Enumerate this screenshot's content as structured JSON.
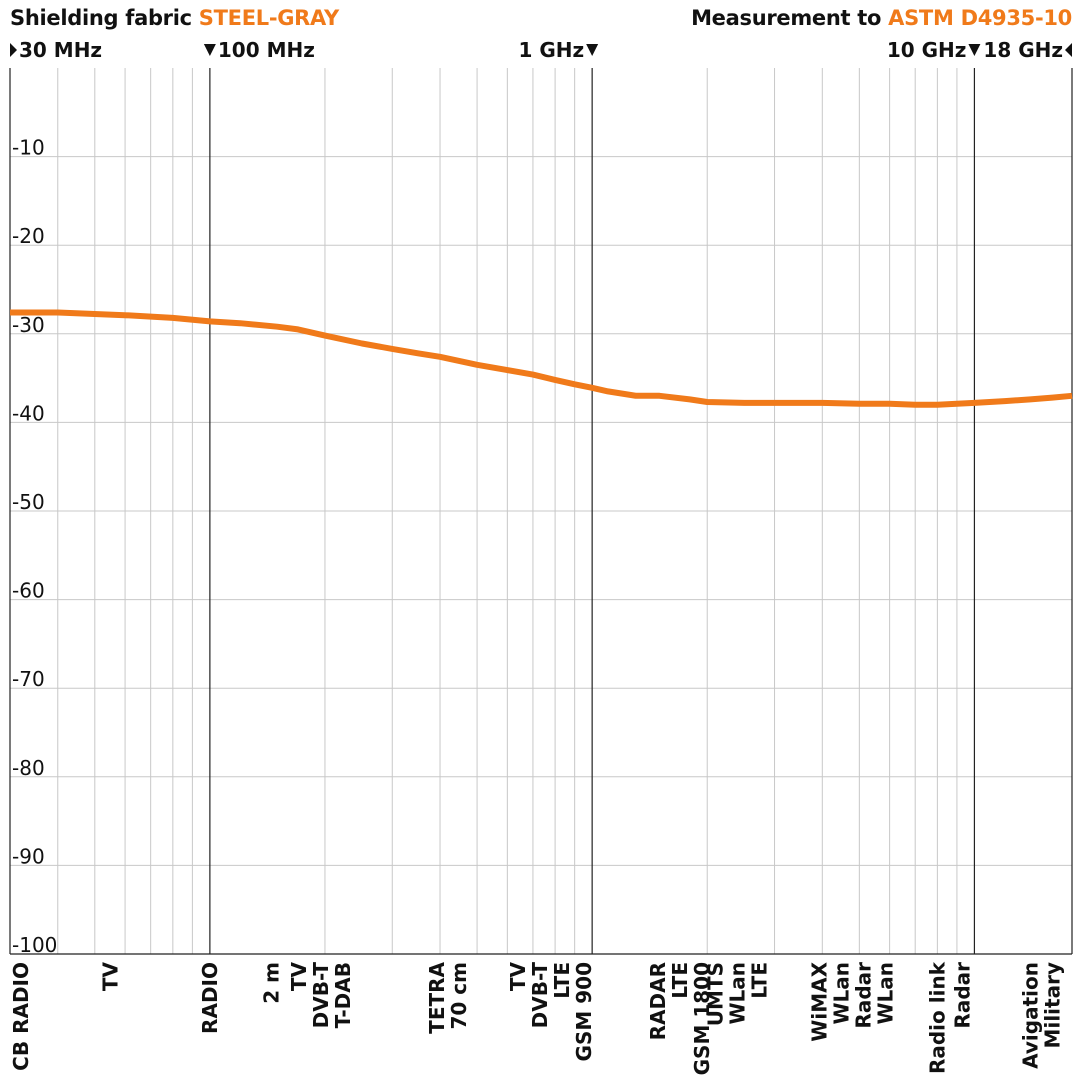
{
  "header": {
    "left_prefix": "Shielding fabric",
    "left_accent": "STEEL-GRAY",
    "right_prefix": "Measurement to",
    "right_accent": "ASTM D4935-10"
  },
  "colors": {
    "accent": "#f07a1a",
    "grid_minor": "#c8c8c8",
    "grid_major": "#222222",
    "text": "#111111"
  },
  "chart_data": {
    "type": "line",
    "x_scale": "log",
    "xlim_mhz": [
      30,
      18000
    ],
    "ylim": [
      -100,
      0
    ],
    "y_ticks": [
      -10,
      -20,
      -30,
      -40,
      -50,
      -60,
      -70,
      -80,
      -90,
      -100
    ],
    "grid": true,
    "frequency_markers": [
      {
        "label": "30 MHz",
        "freq_mhz": 30,
        "arrow": "right",
        "align": "left"
      },
      {
        "label": "100 MHz",
        "freq_mhz": 100,
        "arrow": "down",
        "align": "left"
      },
      {
        "label": "1 GHz",
        "freq_mhz": 1000,
        "arrow": "down",
        "align": "right"
      },
      {
        "label": "10 GHz",
        "freq_mhz": 10000,
        "arrow": "down",
        "align": "right"
      },
      {
        "label": "18 GHz",
        "freq_mhz": 18000,
        "arrow": "left",
        "align": "right"
      }
    ],
    "band_labels": [
      {
        "lines": [
          "CB RADIO"
        ],
        "freq_mhz": 30
      },
      {
        "lines": [
          "TV"
        ],
        "freq_mhz": 55
      },
      {
        "lines": [
          "RADIO"
        ],
        "freq_mhz": 100
      },
      {
        "lines": [
          "2 m"
        ],
        "freq_mhz": 145
      },
      {
        "lines": [
          "TV",
          "DVB-T",
          "T-DAB"
        ],
        "freq_mhz": 195
      },
      {
        "lines": [
          "TETRA",
          "70 cm"
        ],
        "freq_mhz": 420
      },
      {
        "lines": [
          "TV",
          "DVB-T",
          "LTE",
          "GSM 900"
        ],
        "freq_mhz": 780
      },
      {
        "lines": [
          "RADAR",
          "LTE",
          "GSM 1800"
        ],
        "freq_mhz": 1700
      },
      {
        "lines": [
          "UMTS",
          "WLan",
          "LTE"
        ],
        "freq_mhz": 2400
      },
      {
        "lines": [
          "WiMAX",
          "WLan",
          "Radar",
          "WLan"
        ],
        "freq_mhz": 4800
      },
      {
        "lines": [
          "Radio link"
        ],
        "freq_mhz": 8000
      },
      {
        "lines": [
          "Radar"
        ],
        "freq_mhz": 9300
      },
      {
        "lines": [
          "Avigation",
          "Military"
        ],
        "freq_mhz": 15000
      }
    ],
    "series": [
      {
        "x_mhz": [
          30,
          40,
          60,
          80,
          100,
          120,
          150,
          170,
          200,
          250,
          300,
          350,
          400,
          500,
          600,
          700,
          800,
          900,
          1000,
          1100,
          1300,
          1500,
          1800,
          2000,
          2500,
          3000,
          4000,
          5000,
          6000,
          7000,
          8000,
          9000,
          10000,
          12000,
          14000,
          16000,
          18000
        ],
        "values": [
          -27.6,
          -27.6,
          -27.9,
          -28.2,
          -28.6,
          -28.8,
          -29.2,
          -29.5,
          -30.2,
          -31.1,
          -31.7,
          -32.2,
          -32.6,
          -33.5,
          -34.1,
          -34.6,
          -35.2,
          -35.7,
          -36.1,
          -36.5,
          -37.0,
          -37.0,
          -37.4,
          -37.7,
          -37.8,
          -37.8,
          -37.8,
          -37.9,
          -37.9,
          -38.0,
          -38.0,
          -37.9,
          -37.8,
          -37.6,
          -37.4,
          -37.2,
          -37.0
        ]
      }
    ]
  }
}
